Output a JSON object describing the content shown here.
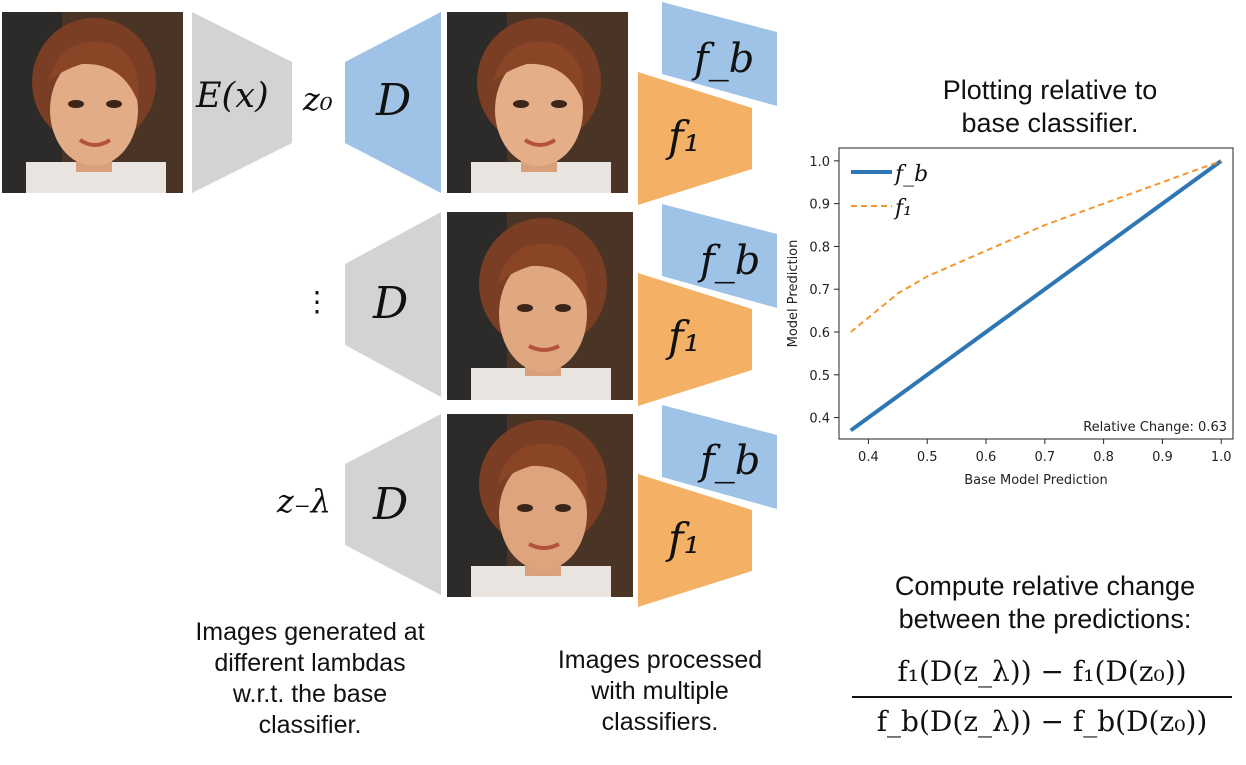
{
  "colors": {
    "encoder_gray": "#d3d3d3",
    "decoder_blue": "#9fc2e7",
    "decoder_gray": "#d3d3d3",
    "classifier_blue": "#9fc2e7",
    "classifier_orange": "#f4b065",
    "line_fb": "#2e77b4",
    "line_f1": "#f2982e"
  },
  "labels": {
    "encoder": "E(x)",
    "z0": "z₀",
    "decoder": "D",
    "ellipsis": "⋮",
    "z_neg_lambda": "z₋λ",
    "fb": "f_b",
    "f1": "f₁"
  },
  "text": {
    "plot_title_line1": "Plotting relative to",
    "plot_title_line2": "base classifier.",
    "compute_line1": "Compute relative change",
    "compute_line2": "between the predictions:",
    "caption_left_1": "Images generated at",
    "caption_left_2": "different lambdas",
    "caption_left_3": "w.r.t. the base",
    "caption_left_4": "classifier.",
    "caption_mid_1": "Images processed",
    "caption_mid_2": "with multiple",
    "caption_mid_3": "classifiers.",
    "formula_numerator": "f₁(D(z_λ)) − f₁(D(z₀))",
    "formula_denominator": "f_b(D(z_λ)) − f_b(D(z₀))"
  },
  "chart_data": {
    "type": "line",
    "xlabel": "Base Model Prediction",
    "ylabel": "Model Prediction",
    "xlim": [
      0.35,
      1.02
    ],
    "ylim": [
      0.35,
      1.03
    ],
    "xticks": [
      "0.4",
      "0.5",
      "0.6",
      "0.7",
      "0.8",
      "0.9",
      "1.0"
    ],
    "yticks": [
      "0.4",
      "0.5",
      "0.6",
      "0.7",
      "0.8",
      "0.9",
      "1.0"
    ],
    "annotation": "Relative Change: 0.63",
    "legend_position": "top-left",
    "series": [
      {
        "name": "f_b",
        "style": "solid",
        "x": [
          0.37,
          1.0
        ],
        "y": [
          0.37,
          1.0
        ]
      },
      {
        "name": "f₁",
        "style": "dashed",
        "x": [
          0.37,
          0.45,
          0.5,
          0.6,
          0.7,
          0.8,
          0.9,
          1.0
        ],
        "y": [
          0.6,
          0.69,
          0.73,
          0.79,
          0.85,
          0.9,
          0.95,
          1.0
        ]
      }
    ]
  }
}
